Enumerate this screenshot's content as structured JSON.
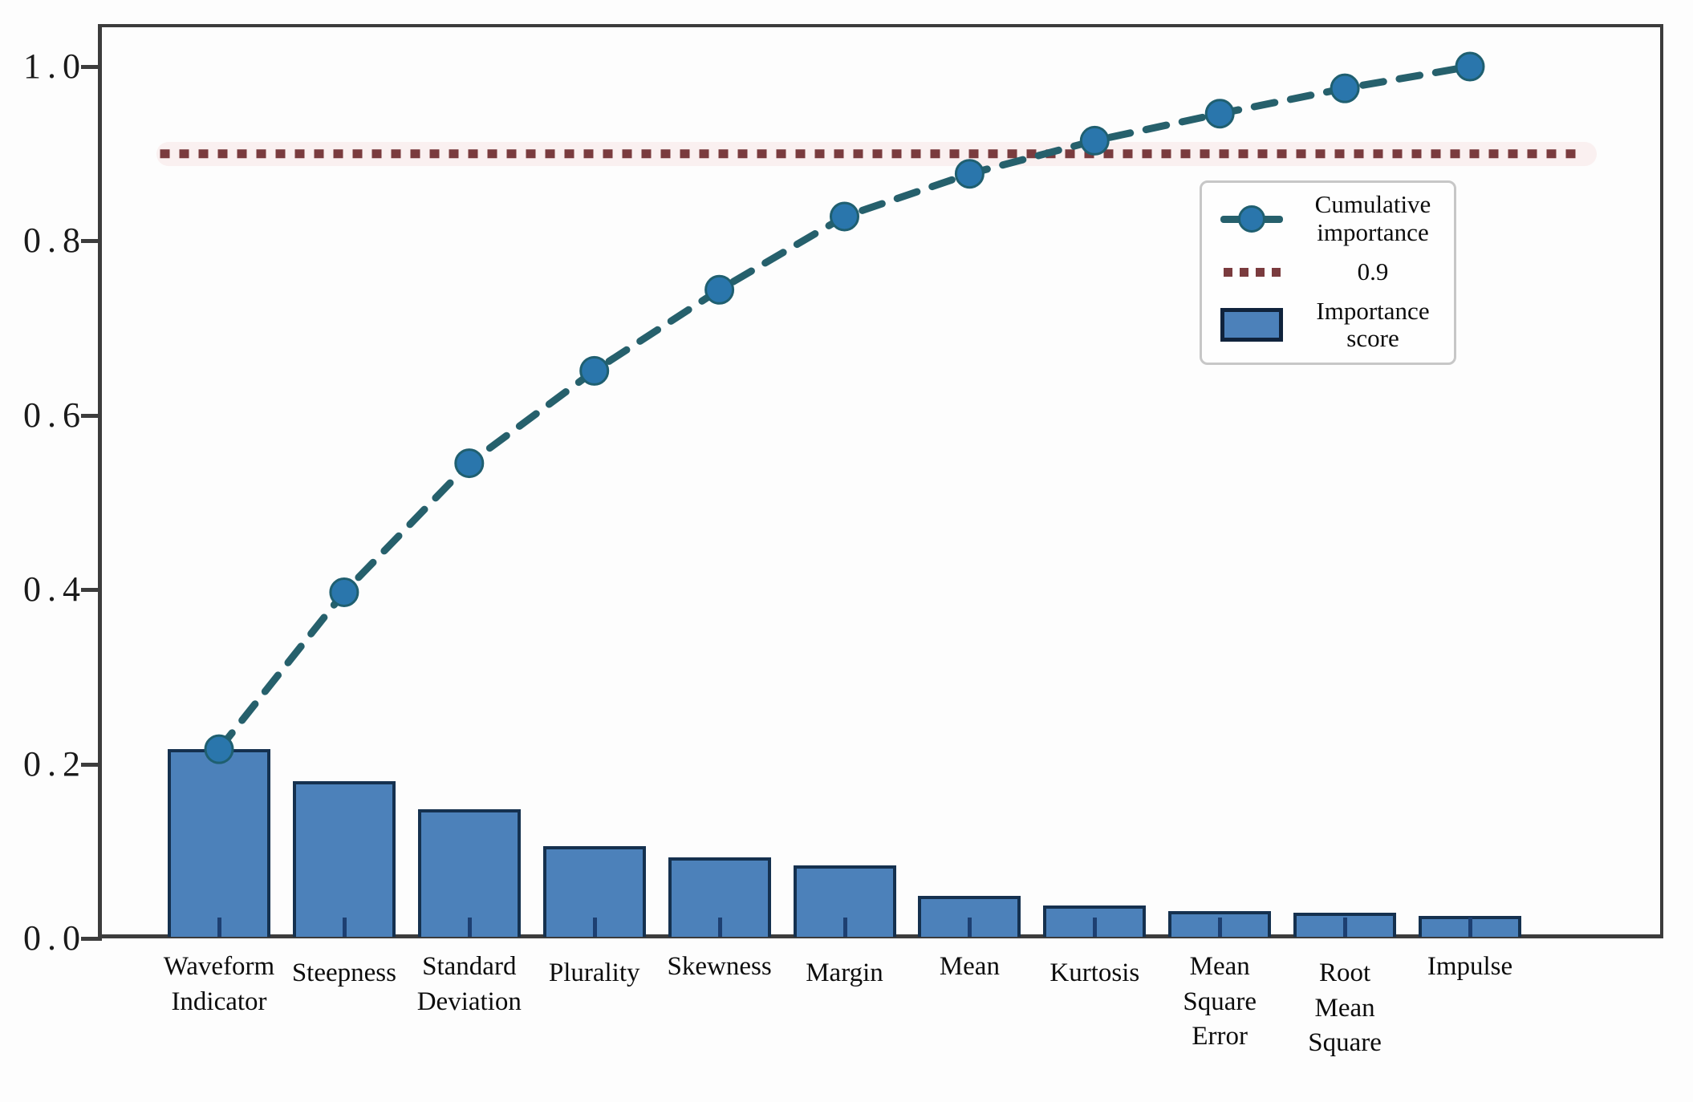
{
  "chart_data": {
    "type": "bar",
    "subtype": "pareto (bar + cumulative line + threshold)",
    "title": "",
    "xlabel": "",
    "ylabel": "",
    "ylim": [
      0.0,
      1.05
    ],
    "grid": false,
    "yticks": [
      {
        "label": "0.0",
        "value": 0.0
      },
      {
        "label": "0.2",
        "value": 0.2
      },
      {
        "label": "0.4",
        "value": 0.4
      },
      {
        "label": "0.6",
        "value": 0.6
      },
      {
        "label": "0.8",
        "value": 0.8
      },
      {
        "label": "1.0",
        "value": 1.0
      }
    ],
    "categories": [
      "Waveform\nIndicator",
      "Steepness",
      "Standard\nDeviation",
      "Plurality",
      "Skewness",
      "Margin",
      "Mean",
      "Kurtosis",
      "Mean\nSquare\nError",
      "Root\nMean\nSquare",
      "Impulse"
    ],
    "series": [
      {
        "name": "Importance score",
        "type": "bar",
        "values": [
          0.217,
          0.18,
          0.148,
          0.106,
          0.093,
          0.084,
          0.049,
          0.038,
          0.031,
          0.029,
          0.026
        ]
      },
      {
        "name": "Cumulative importance",
        "type": "line",
        "values": [
          0.217,
          0.397,
          0.545,
          0.651,
          0.744,
          0.828,
          0.877,
          0.915,
          0.946,
          0.975,
          1.0
        ]
      },
      {
        "name": "0.9",
        "type": "threshold",
        "value": 0.9
      }
    ],
    "legend": {
      "position": "upper-right-inside",
      "items": [
        {
          "label": "Cumulative importance",
          "swatch": "line-with-marker"
        },
        {
          "label": "0.9",
          "swatch": "dotted-line"
        },
        {
          "label": "Importance score",
          "swatch": "bar-rect"
        }
      ]
    },
    "colors": {
      "bar_fill": "#4C81BA",
      "bar_edge": "#15314F",
      "line": "#26606C",
      "marker": "#2A76AC",
      "marker_edge": "#1F5F70",
      "threshold": "#7A3B3E",
      "spine": "#3C3C3C",
      "xtick": "#1D3F71"
    }
  }
}
